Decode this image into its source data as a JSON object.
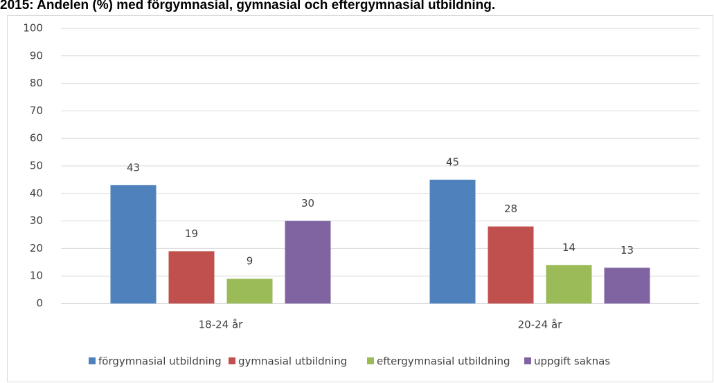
{
  "chart_data": {
    "type": "bar",
    "title": "2015: Andelen (%) med förgymnasial, gymnasial och eftergymnasial utbildning.",
    "categories": [
      "18-24 år",
      "20-24 år"
    ],
    "series": [
      {
        "name": "förgymnasial utbildning",
        "color": "#4f81bd",
        "values": [
          43,
          45
        ]
      },
      {
        "name": "gymnasial utbildning",
        "color": "#c0504d",
        "values": [
          19,
          28
        ]
      },
      {
        "name": "eftergymnasial utbildning",
        "color": "#9bbb59",
        "values": [
          9,
          14
        ]
      },
      {
        "name": "uppgift saknas",
        "color": "#8064a2",
        "values": [
          30,
          13
        ]
      }
    ],
    "ylim": [
      0,
      100
    ],
    "yticks": [
      0,
      10,
      20,
      30,
      40,
      50,
      60,
      70,
      80,
      90,
      100
    ],
    "grid": true,
    "legend": "bottom"
  }
}
